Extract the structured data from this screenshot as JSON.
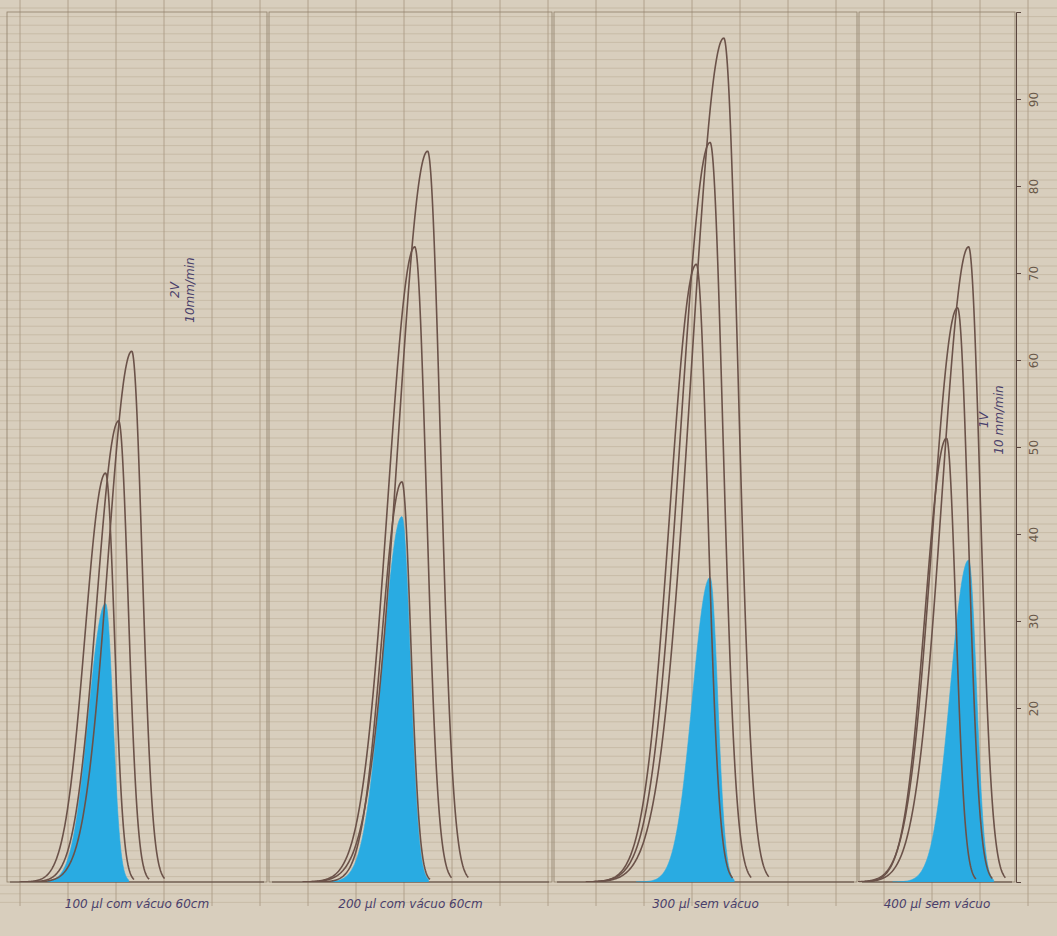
{
  "chart_data": [
    {
      "type": "line",
      "label": "100 µl com vácuo 60cm",
      "annotations": [
        "2V",
        "10mm/min"
      ],
      "categories": [
        null,
        null,
        null
      ],
      "ylim": [
        0,
        100
      ],
      "tick_labels": false,
      "series": [
        {
          "type": "line",
          "color": "#6b5249",
          "values": [
            47,
            53,
            61
          ]
        },
        {
          "type": "area",
          "color": "#29abe2",
          "values": [
            32,
            null,
            null
          ]
        }
      ]
    },
    {
      "type": "line",
      "label": "200 µl com vácuo 60cm",
      "categories": [
        null,
        null,
        null
      ],
      "ylim": [
        0,
        100
      ],
      "tick_labels": false,
      "series": [
        {
          "type": "line",
          "color": "#6b5249",
          "values": [
            46,
            73,
            84
          ]
        },
        {
          "type": "area",
          "color": "#29abe2",
          "values": [
            42,
            null,
            null
          ]
        }
      ]
    },
    {
      "type": "line",
      "label": "300 µl sem vácuo",
      "categories": [
        null,
        null,
        null
      ],
      "ylim": [
        0,
        100
      ],
      "tick_labels": false,
      "series": [
        {
          "type": "line",
          "color": "#6b5249",
          "values": [
            71,
            85,
            97
          ]
        },
        {
          "type": "area",
          "color": "#29abe2",
          "values": [
            null,
            35,
            null
          ]
        }
      ]
    },
    {
      "type": "line",
      "label": "400 µl sem vácuo",
      "annotations": [
        "1V",
        "10 mm/min"
      ],
      "categories": [
        null,
        null,
        null
      ],
      "ylim": [
        0,
        100
      ],
      "yticks": [
        20,
        30,
        40,
        50,
        60,
        70,
        80,
        90
      ],
      "tick_labels": "y",
      "series": [
        {
          "type": "line",
          "color": "#6b5249",
          "values": [
            51,
            66,
            73
          ]
        },
        {
          "type": "area",
          "color": "#29abe2",
          "values": [
            null,
            null,
            37
          ]
        }
      ]
    }
  ]
}
